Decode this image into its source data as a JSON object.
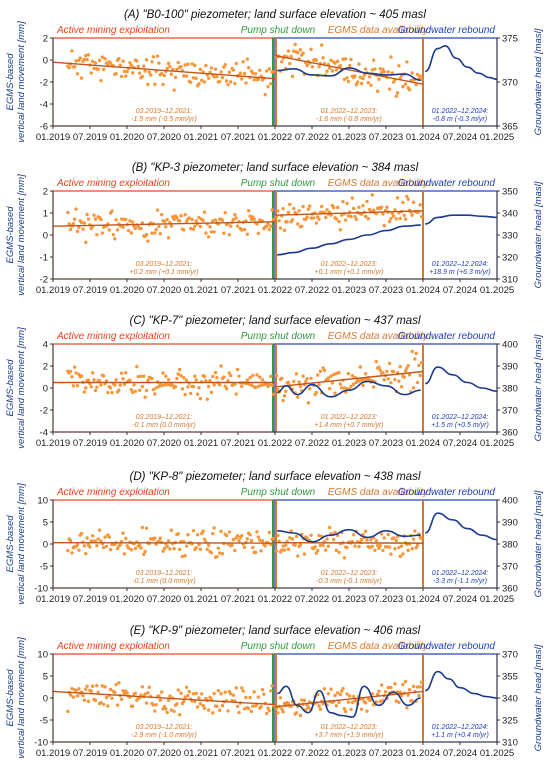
{
  "colors": {
    "mining": "#e8421f",
    "pump": "#2f9a3f",
    "egms": "#d27a2e",
    "rebound": "#1f3fb5",
    "points": "#f5973a",
    "trend": "#c2561a",
    "head": "#1b3b8c"
  },
  "shared": {
    "x_ticks": [
      "01.2019",
      "07.2019",
      "01.2020",
      "07.2020",
      "01.2021",
      "07.2021",
      "01.2022",
      "07.2022",
      "01.2023",
      "07.2023",
      "01.2024",
      "07.2024",
      "01.2025"
    ],
    "left_ylabel_line1": "EGMS-based",
    "left_ylabel_line2": "vertical land movement [mm]",
    "right_ylabel": "Groundwater head [masl]",
    "phase_labels": {
      "mining": "Active mining exploitation",
      "pump": "Pump shut down",
      "egms": "EGMS data availability",
      "rebound": "Groundwater rebound"
    }
  },
  "chart_data": [
    {
      "type": "scatter",
      "title": "(A) \"B0-100\" piezometer; land surface elevation ~ 405 masl",
      "left_ylim": [
        -6,
        2
      ],
      "left_ticks": [
        -6,
        -4,
        -2,
        0,
        2
      ],
      "right_ylim": [
        365,
        375
      ],
      "right_ticks": [
        365,
        370,
        375
      ],
      "trend1": {
        "x": [
          0,
          3.0
        ],
        "y": [
          -0.2,
          -1.7
        ]
      },
      "trend2": {
        "x": [
          3.0,
          5.0
        ],
        "y": [
          0.4,
          -2.2
        ]
      },
      "seed": 11,
      "mean1": -0.9,
      "spread1": 0.9,
      "mean2": -0.9,
      "spread2": 1.1,
      "head_x": [
        3.03,
        3.25,
        3.5,
        3.75,
        4.0,
        4.25,
        4.5,
        4.75,
        4.97
      ],
      "head_y": [
        371.3,
        371.5,
        370.8,
        370.7,
        371.6,
        371.0,
        370.8,
        370.9,
        370.2
      ],
      "head2_x": [
        5.03,
        5.2,
        5.3,
        5.45,
        5.6,
        5.75,
        5.9,
        6.0
      ],
      "head2_y": [
        371.2,
        373.8,
        374.1,
        372.7,
        371.7,
        371.0,
        370.5,
        370.3
      ],
      "stats": [
        {
          "line1": "03.2019–12.2021:",
          "line2": "-1.5 mm (-0.5 mm/yr)"
        },
        {
          "line1": "01.2022–12.2023:",
          "line2": "-1.6 mm (-0.8 mm/yr)"
        },
        {
          "line1": "01.2022–12.2024:",
          "line2": "-0.8 m (-0.3 m/yr)"
        }
      ]
    },
    {
      "type": "scatter",
      "title": "(B) \"KP-3 piezometer; land surface elevation ~ 384 masl",
      "left_ylim": [
        -2,
        2
      ],
      "left_ticks": [
        -2,
        -1,
        0,
        1,
        2
      ],
      "right_ylim": [
        310,
        350
      ],
      "right_ticks": [
        310,
        320,
        330,
        340,
        350
      ],
      "trend1": {
        "x": [
          0,
          3.0
        ],
        "y": [
          0.4,
          0.6
        ]
      },
      "trend2": {
        "x": [
          3.0,
          5.0
        ],
        "y": [
          0.9,
          1.1
        ]
      },
      "seed": 23,
      "mean1": 0.5,
      "spread1": 0.45,
      "mean2": 1.0,
      "spread2": 0.45,
      "head_x": [
        3.03,
        3.25,
        3.5,
        3.75,
        4.0,
        4.25,
        4.5,
        4.75,
        4.97
      ],
      "head_y": [
        321.0,
        322.0,
        324.0,
        326.0,
        328.0,
        330.0,
        332.0,
        334.0,
        334.5
      ],
      "head2_x": [
        5.03,
        5.2,
        5.4,
        5.6,
        5.8,
        6.0
      ],
      "head2_y": [
        335.0,
        338.0,
        339.0,
        339.0,
        338.5,
        338.0
      ],
      "stats": [
        {
          "line1": "03.2019–12.2021:",
          "line2": "+0.2 mm (+0.1 mm/yr)"
        },
        {
          "line1": "01.2022–12.2023:",
          "line2": "+0.1 mm (+0.1 mm/yr)"
        },
        {
          "line1": "01.2022–12.2024:",
          "line2": "+18.9 m (+6.3 m/yr)"
        }
      ]
    },
    {
      "type": "scatter",
      "title": "(C) \"KP-7\" piezometer; land surface elevation ~ 437 masl",
      "left_ylim": [
        -4,
        4
      ],
      "left_ticks": [
        -4,
        -2,
        0,
        2,
        4
      ],
      "right_ylim": [
        360,
        400
      ],
      "right_ticks": [
        360,
        370,
        380,
        390,
        400
      ],
      "trend1": {
        "x": [
          0,
          3.0
        ],
        "y": [
          0.5,
          0.5
        ]
      },
      "trend2": {
        "x": [
          3.0,
          5.0
        ],
        "y": [
          0.1,
          1.5
        ]
      },
      "seed": 37,
      "mean1": 0.5,
      "spread1": 0.9,
      "mean2": 0.8,
      "spread2": 1.0,
      "head_x": [
        3.03,
        3.15,
        3.3,
        3.5,
        3.75,
        4.0,
        4.25,
        4.5,
        4.75,
        4.97
      ],
      "head_y": [
        378.0,
        381.0,
        377.0,
        381.5,
        376.0,
        379.0,
        383.0,
        381.0,
        377.0,
        379.0
      ],
      "head2_x": [
        5.03,
        5.2,
        5.4,
        5.6,
        5.8,
        6.0
      ],
      "head2_y": [
        382.0,
        389.5,
        386.0,
        382.5,
        380.0,
        378.5
      ],
      "stats": [
        {
          "line1": "03.2019–12.2021:",
          "line2": "-0.1 mm (0.0 mm/yr)"
        },
        {
          "line1": "01.2022–12.2023:",
          "line2": "+1.4 mm (+0.7 mm/yr)"
        },
        {
          "line1": "01.2022–12.2024:",
          "line2": "+1.5 m (+0.5 m/yr)"
        }
      ]
    },
    {
      "type": "scatter",
      "title": "(D) \"KP-8\" piezometer; land surface elevation ~ 438 masl",
      "left_ylim": [
        -10,
        10
      ],
      "left_ticks": [
        -10,
        -5,
        0,
        5,
        10
      ],
      "right_ylim": [
        360,
        400
      ],
      "right_ticks": [
        360,
        370,
        380,
        390,
        400
      ],
      "trend1": {
        "x": [
          0,
          3.0
        ],
        "y": [
          0.3,
          0.2
        ]
      },
      "trend2": {
        "x": [
          3.0,
          5.0
        ],
        "y": [
          0.3,
          0.2
        ]
      },
      "seed": 53,
      "mean1": 0.3,
      "spread1": 2.0,
      "mean2": 0.0,
      "spread2": 2.2,
      "head_x": [
        3.03,
        3.25,
        3.5,
        3.75,
        4.0,
        4.25,
        4.5,
        4.75,
        4.97
      ],
      "head_y": [
        386.0,
        385.0,
        381.0,
        384.0,
        386.5,
        383.0,
        386.0,
        383.5,
        384.0
      ],
      "head2_x": [
        5.03,
        5.2,
        5.4,
        5.6,
        5.8,
        6.0
      ],
      "head2_y": [
        385.0,
        394.0,
        391.0,
        387.0,
        384.0,
        382.0
      ],
      "stats": [
        {
          "line1": "03.2019–12.2021:",
          "line2": "-0.1 mm (0.0 mm/yr)"
        },
        {
          "line1": "01.2022–12.2023:",
          "line2": "-0.3 mm (-0.1 mm/yr)"
        },
        {
          "line1": "01.2022–12.2024:",
          "line2": "-3.3 m (-1.1 m/yr)"
        }
      ]
    },
    {
      "type": "scatter",
      "title": "(E) \"KP-9\" piezometer; land surface elevation ~ 406 masl",
      "left_ylim": [
        -10,
        10
      ],
      "left_ticks": [
        -10,
        -5,
        0,
        5,
        10
      ],
      "right_ylim": [
        310,
        370
      ],
      "right_ticks": [
        310,
        325,
        340,
        355,
        370
      ],
      "trend1": {
        "x": [
          0,
          3.0
        ],
        "y": [
          1.5,
          -1.5
        ]
      },
      "trend2": {
        "x": [
          3.0,
          5.0
        ],
        "y": [
          -2.0,
          1.5
        ]
      },
      "seed": 71,
      "mean1": 0.0,
      "spread1": 2.2,
      "mean2": 0.0,
      "spread2": 2.0,
      "head_x": [
        3.03,
        3.15,
        3.3,
        3.45,
        3.6,
        3.75,
        3.9,
        4.05,
        4.2,
        4.4,
        4.6,
        4.8,
        4.97
      ],
      "head_y": [
        343.0,
        348.0,
        335.0,
        330.0,
        345.0,
        330.0,
        328.0,
        327.0,
        348.0,
        335.0,
        344.0,
        335.0,
        340.0
      ],
      "head2_x": [
        5.03,
        5.2,
        5.35,
        5.5,
        5.7,
        5.85,
        6.0
      ],
      "head2_y": [
        345.0,
        358.0,
        353.0,
        347.0,
        343.0,
        341.0,
        340.0
      ],
      "stats": [
        {
          "line1": "03.2019–12.2021:",
          "line2": "-2.9 mm (-1.0 mm/yr)"
        },
        {
          "line1": "01.2022–12.2023:",
          "line2": "+3.7 mm (+1.9 mm/yr)"
        },
        {
          "line1": "01.2022–12.2024:",
          "line2": "+1.1 m (+0.4 m/yr)"
        }
      ]
    }
  ]
}
